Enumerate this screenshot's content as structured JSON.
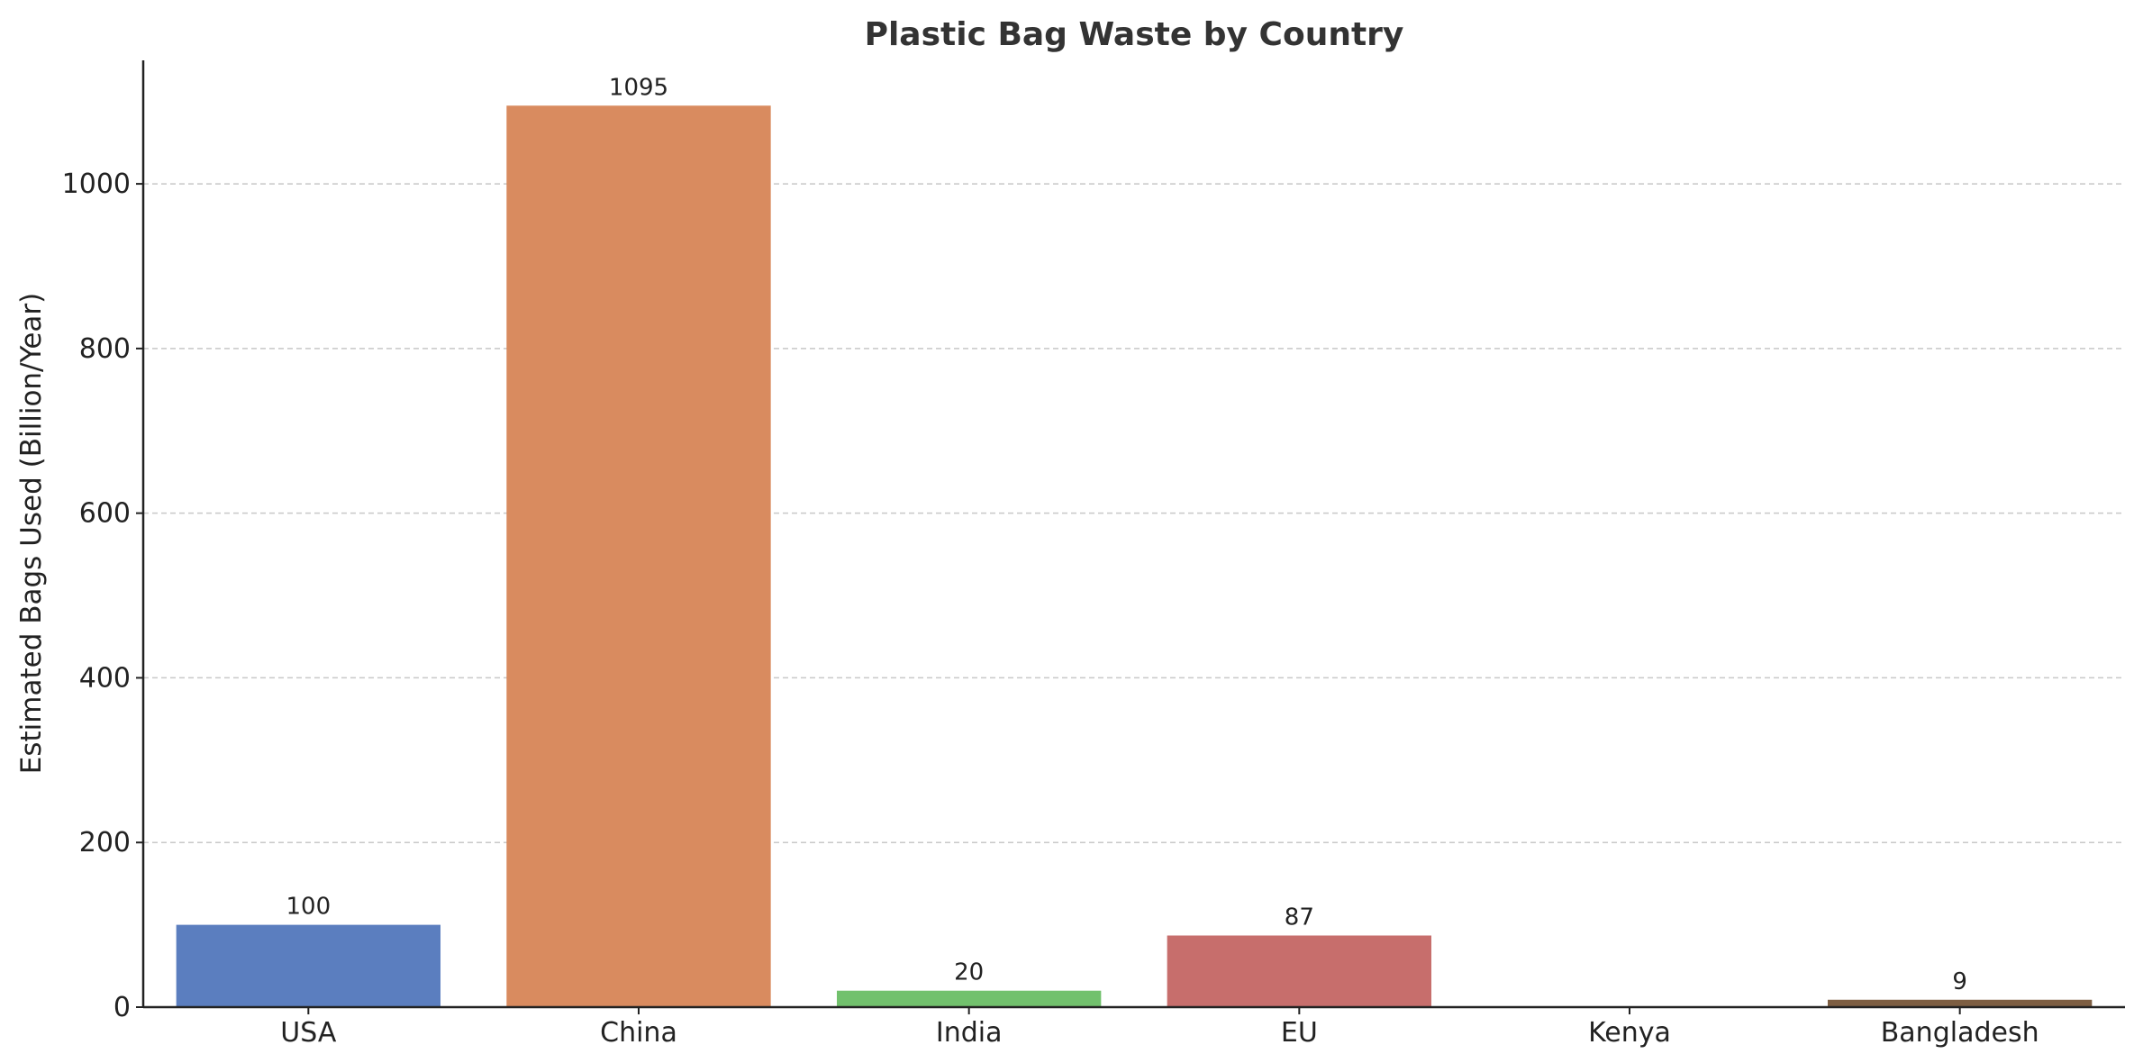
{
  "chart_data": {
    "type": "bar",
    "title": "Plastic Bag Waste by Country",
    "xlabel": "",
    "ylabel": "Estimated Bags Used (Billion/Year)",
    "categories": [
      "USA",
      "China",
      "India",
      "EU",
      "Kenya",
      "Bangladesh"
    ],
    "values": [
      100,
      1095,
      20,
      87,
      null,
      9
    ],
    "data_labels": [
      "100",
      "1095",
      "20",
      "87",
      "",
      "9"
    ],
    "colors": [
      "#5b7ebf",
      "#d98b5f",
      "#72c16d",
      "#c76e6c",
      "#9b7bbf",
      "#7d5e42"
    ],
    "ylim": [
      0,
      1150
    ],
    "yticks": [
      0,
      200,
      400,
      600,
      800,
      1000
    ],
    "ytick_labels": [
      "0",
      "200",
      "400",
      "600",
      "800",
      "1000"
    ],
    "grid": "y-dashed",
    "legend": "none"
  }
}
